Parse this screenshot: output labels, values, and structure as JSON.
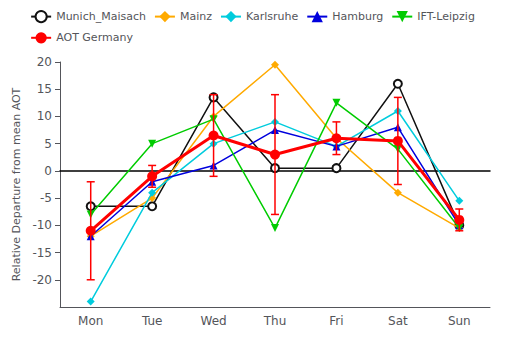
{
  "chart_data": {
    "type": "line",
    "categories": [
      "Mon",
      "Tue",
      "Wed",
      "Thu",
      "Fri",
      "Sat",
      "Sun"
    ],
    "ylabel": "Relative Departure from mean AOT",
    "ylim": [
      -25,
      20
    ],
    "yticks": [
      -20,
      -15,
      -10,
      -5,
      0,
      5,
      10,
      15,
      20
    ],
    "grid": false,
    "legend": "top",
    "series": [
      {
        "name": "Munich_Maisach",
        "color": "#111111",
        "marker": "circle_open",
        "values": [
          -6.5,
          -6.5,
          13.5,
          0.5,
          0.5,
          16,
          -10
        ]
      },
      {
        "name": "Mainz",
        "color": "#ffaa00",
        "marker": "diamond",
        "values": [
          -12,
          -5,
          10,
          19.5,
          6,
          -4,
          -10.5
        ]
      },
      {
        "name": "Karlsruhe",
        "color": "#00ccdd",
        "marker": "diamond",
        "values": [
          -24,
          -4,
          5,
          9,
          4.5,
          11,
          -5.5
        ]
      },
      {
        "name": "Hamburg",
        "color": "#0000dd",
        "marker": "triangle",
        "values": [
          -12,
          -2,
          1,
          7.5,
          4.5,
          8,
          -10
        ]
      },
      {
        "name": "IFT-Leipzig",
        "color": "#00cc00",
        "marker": "triangle_down",
        "values": [
          -8,
          5,
          9.5,
          -10.5,
          12.5,
          4,
          -10.5
        ]
      },
      {
        "name": "AOT Germany",
        "color": "#ff0000",
        "marker": "circle",
        "values": [
          -11,
          -1,
          6.5,
          3,
          6,
          5.5,
          -9
        ],
        "errors": [
          9,
          2,
          7.5,
          11,
          3,
          8,
          2
        ]
      }
    ]
  }
}
